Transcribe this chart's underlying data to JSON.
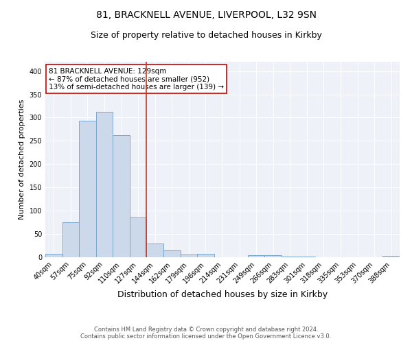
{
  "title_line1": "81, BRACKNELL AVENUE, LIVERPOOL, L32 9SN",
  "title_line2": "Size of property relative to detached houses in Kirkby",
  "xlabel": "Distribution of detached houses by size in Kirkby",
  "ylabel": "Number of detached properties",
  "footer_line1": "Contains HM Land Registry data © Crown copyright and database right 2024.",
  "footer_line2": "Contains public sector information licensed under the Open Government Licence v3.0.",
  "bar_labels": [
    "40sqm",
    "57sqm",
    "75sqm",
    "92sqm",
    "110sqm",
    "127sqm",
    "144sqm",
    "162sqm",
    "179sqm",
    "196sqm",
    "214sqm",
    "231sqm",
    "249sqm",
    "266sqm",
    "283sqm",
    "301sqm",
    "318sqm",
    "335sqm",
    "353sqm",
    "370sqm",
    "388sqm"
  ],
  "bar_values": [
    7,
    75,
    293,
    312,
    262,
    85,
    29,
    15,
    6,
    8,
    0,
    0,
    5,
    4,
    2,
    2,
    0,
    0,
    0,
    0,
    3
  ],
  "bar_color": "#ccd9ea",
  "bar_edge_color": "#7ba7cc",
  "vline_x_index": 5,
  "vline_color": "#c0392b",
  "annotation_line1": "81 BRACKNELL AVENUE: 129sqm",
  "annotation_line2": "← 87% of detached houses are smaller (952)",
  "annotation_line3": "13% of semi-detached houses are larger (139) →",
  "ylim": [
    0,
    420
  ],
  "yticks": [
    0,
    50,
    100,
    150,
    200,
    250,
    300,
    350,
    400
  ],
  "background_color": "#eef2f8",
  "grid_color": "#ffffff",
  "title_fontsize": 10,
  "subtitle_fontsize": 9,
  "xlabel_fontsize": 9,
  "ylabel_fontsize": 8,
  "tick_fontsize": 7,
  "annotation_fontsize": 7.5,
  "footer_fontsize": 6
}
